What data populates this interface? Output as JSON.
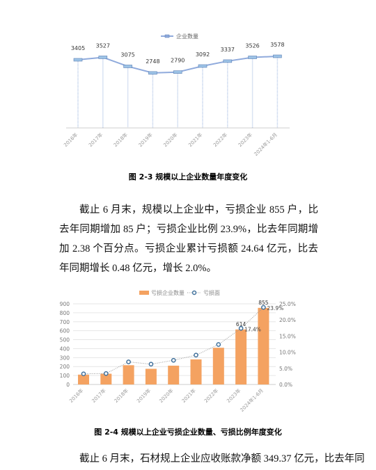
{
  "chart_data": [
    {
      "type": "line",
      "legend": "top",
      "categories": [
        "2016年",
        "2017年",
        "2018年",
        "2019年",
        "2020年",
        "2021年",
        "2022年",
        "2023年",
        "2024年1-6月"
      ],
      "series": [
        {
          "name": "企业数量",
          "color": "#8faadc",
          "values": [
            3405,
            3527,
            3075,
            2748,
            2790,
            3092,
            3337,
            3526,
            3578
          ]
        }
      ]
    },
    {
      "type": "bar-line",
      "legend": "top",
      "grid": true,
      "categories": [
        "2016年",
        "2017年",
        "2018年",
        "2019年",
        "2020年",
        "2021年",
        "2022年",
        "2023年",
        "2024年1-6月"
      ],
      "ylim": [
        0,
        900
      ],
      "yticks": [
        0,
        100,
        200,
        300,
        400,
        500,
        600,
        700,
        800,
        900
      ],
      "y2lim": [
        0,
        25
      ],
      "y2ticks": [
        {
          "value": 0,
          "label": "0.0%"
        },
        {
          "value": 5,
          "label": "5.0%"
        },
        {
          "value": 10,
          "label": "10.0%"
        },
        {
          "value": 15,
          "label": "15.0%"
        },
        {
          "value": 20,
          "label": "20.0%"
        },
        {
          "value": 25,
          "label": "25.0%"
        }
      ],
      "series": [
        {
          "name": "亏损企业数量",
          "color": "#f4a261",
          "values": [
            110,
            120,
            215,
            175,
            210,
            280,
            410,
            614,
            855
          ],
          "value_labels": [
            null,
            null,
            null,
            null,
            null,
            null,
            null,
            "614",
            "855"
          ]
        },
        {
          "name": "亏损面",
          "color": "#41719c",
          "axis": "y2",
          "values": [
            3.3,
            3.4,
            7.0,
            6.3,
            7.5,
            9.1,
            12.4,
            17.4,
            23.9
          ],
          "value_labels": [
            null,
            null,
            null,
            null,
            null,
            null,
            null,
            "17.4%",
            "23.9%"
          ]
        }
      ]
    }
  ],
  "captions": [
    "图 2-3  规模以上企业数量年度变化",
    "图 2-4  规模以上企业亏损企业数量、亏损比例年度变化"
  ],
  "paragraphs": [
    "截止 6 月末，规模以上企业中，亏损企业 855 户，比去年同期增加 85 户；亏损企业比例 23.9%，比去年同期增加 2.38 个百分点。亏损企业累计亏损额 24.64 亿元，比去年同期增长 0.48 亿元，增长 2.0%。",
    "截止 6 月末，石材规上企业应收账款净额 349.37 亿元，比去年同"
  ]
}
